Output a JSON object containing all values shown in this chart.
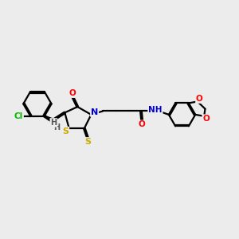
{
  "bg_color": "#ececec",
  "atom_colors": {
    "C": "#000000",
    "N": "#0000cd",
    "O": "#ff0000",
    "S": "#ccaa00",
    "Cl": "#00bb00",
    "H": "#555555"
  },
  "bond_color": "#000000",
  "bond_width": 1.6
}
